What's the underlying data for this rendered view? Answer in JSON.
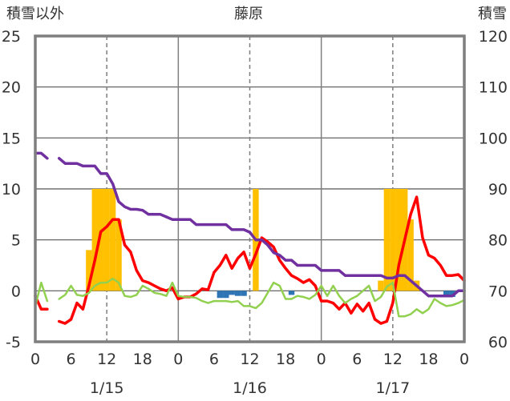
{
  "chart_data": {
    "type": "bar+line",
    "title": "藤原",
    "left_axis_label": "積雪以外",
    "right_axis_label": "積雪",
    "y_left": {
      "ylim": [
        -5,
        25
      ],
      "ticks": [
        -5,
        0,
        5,
        10,
        15,
        20,
        25
      ]
    },
    "y_right": {
      "ylim": [
        60,
        120
      ],
      "ticks": [
        60,
        70,
        80,
        90,
        100,
        110,
        120
      ]
    },
    "x_hours": {
      "xlim": [
        0,
        72
      ],
      "ticks": [
        0,
        6,
        12,
        18,
        24,
        30,
        36,
        42,
        48,
        54,
        60,
        66,
        72
      ],
      "tick_labels": [
        "0",
        "6",
        "12",
        "18",
        "0",
        "6",
        "12",
        "18",
        "0",
        "6",
        "12",
        "18",
        "0"
      ]
    },
    "date_labels": [
      {
        "hour": 12,
        "label": "1/15"
      },
      {
        "hour": 36,
        "label": "1/16"
      },
      {
        "hour": 60,
        "label": "1/17"
      }
    ],
    "vertical_solid_lines_hours": [
      24,
      48
    ],
    "vertical_dashed_lines_hours": [
      12,
      36,
      60
    ],
    "grid_y": true,
    "series": [
      {
        "kind": "bar",
        "axis": "left",
        "color": "#ffc000",
        "points": [
          [
            9,
            4
          ],
          [
            10,
            10
          ],
          [
            11,
            10
          ],
          [
            12,
            10
          ],
          [
            13,
            10
          ],
          [
            14,
            7
          ],
          [
            37,
            10
          ],
          [
            58,
            1
          ],
          [
            59,
            10
          ],
          [
            60,
            10
          ],
          [
            61,
            10
          ],
          [
            62,
            10
          ],
          [
            63,
            7
          ],
          [
            64,
            1
          ]
        ]
      },
      {
        "kind": "bar",
        "axis": "left",
        "color": "#2e75b6",
        "points": [
          [
            31,
            -0.7
          ],
          [
            32,
            -0.7
          ],
          [
            33,
            -0.4
          ],
          [
            34,
            -0.5
          ],
          [
            35,
            -0.5
          ],
          [
            43,
            -0.4
          ],
          [
            69,
            -0.4
          ],
          [
            70,
            -0.6
          ]
        ]
      },
      {
        "kind": "line",
        "axis": "left",
        "color": "#ff0000",
        "segments": [
          [
            [
              0,
              -0.5
            ],
            [
              1,
              -1.8
            ],
            [
              2,
              -1.8
            ]
          ],
          [
            [
              4,
              -3
            ],
            [
              5,
              -3.2
            ],
            [
              6,
              -2.8
            ],
            [
              7,
              -1.2
            ],
            [
              8,
              -1.8
            ],
            [
              9,
              0.5
            ],
            [
              10,
              3
            ],
            [
              11,
              5.8
            ],
            [
              12,
              6.3
            ],
            [
              13,
              7
            ],
            [
              14,
              7
            ],
            [
              15,
              4.5
            ],
            [
              16,
              3.8
            ],
            [
              17,
              2
            ],
            [
              18,
              1
            ],
            [
              19,
              0.8
            ],
            [
              20,
              0.5
            ],
            [
              21,
              0.2
            ],
            [
              22,
              0
            ],
            [
              23,
              0.3
            ],
            [
              24,
              -0.8
            ],
            [
              25,
              -0.6
            ],
            [
              26,
              -0.6
            ],
            [
              27,
              -0.3
            ],
            [
              28,
              0.2
            ],
            [
              29,
              0.1
            ],
            [
              30,
              1.8
            ],
            [
              31,
              2.5
            ],
            [
              32,
              3.5
            ],
            [
              33,
              2.2
            ],
            [
              34,
              3.2
            ],
            [
              35,
              3.8
            ],
            [
              36,
              2.2
            ],
            [
              37,
              3.6
            ],
            [
              38,
              5.2
            ],
            [
              39,
              4.8
            ],
            [
              40,
              4.3
            ],
            [
              41,
              3
            ],
            [
              42,
              2.2
            ],
            [
              43,
              1.5
            ],
            [
              44,
              1.2
            ],
            [
              45,
              0.8
            ],
            [
              46,
              1.1
            ],
            [
              47,
              0.5
            ],
            [
              48,
              -1
            ],
            [
              49,
              -1
            ],
            [
              50,
              -1.2
            ],
            [
              51,
              -1.8
            ],
            [
              52,
              -1.2
            ],
            [
              53,
              -2.2
            ],
            [
              54,
              -1.3
            ],
            [
              55,
              -2
            ],
            [
              56,
              -1.2
            ],
            [
              57,
              -2.8
            ],
            [
              58,
              -3.2
            ],
            [
              59,
              -3
            ],
            [
              60,
              -1.2
            ],
            [
              61,
              2.5
            ],
            [
              62,
              5
            ],
            [
              63,
              7.5
            ],
            [
              64,
              9.2
            ],
            [
              65,
              5.2
            ],
            [
              66,
              3.5
            ],
            [
              67,
              3.2
            ],
            [
              68,
              2.5
            ],
            [
              69,
              1.5
            ],
            [
              70,
              1.5
            ],
            [
              71,
              1.6
            ],
            [
              72,
              1
            ]
          ]
        ]
      },
      {
        "kind": "line",
        "axis": "left",
        "color": "#92d050",
        "segments": [
          [
            [
              0,
              -1.5
            ],
            [
              1,
              0.8
            ],
            [
              2,
              -1
            ]
          ],
          [
            [
              4,
              -0.8
            ],
            [
              5,
              -0.4
            ],
            [
              6,
              0.5
            ],
            [
              7,
              -0.4
            ],
            [
              8,
              -0.5
            ],
            [
              9,
              -0.2
            ],
            [
              10,
              0.5
            ],
            [
              11,
              0.8
            ],
            [
              12,
              0.8
            ],
            [
              13,
              1.2
            ],
            [
              14,
              0.8
            ],
            [
              15,
              -0.5
            ],
            [
              16,
              -0.6
            ],
            [
              17,
              -0.4
            ],
            [
              18,
              0.5
            ],
            [
              19,
              0.2
            ],
            [
              20,
              -0.2
            ],
            [
              21,
              -0.3
            ],
            [
              22,
              -0.5
            ],
            [
              23,
              0.8
            ],
            [
              24,
              -0.5
            ],
            [
              25,
              -0.6
            ],
            [
              26,
              -0.6
            ],
            [
              27,
              -0.7
            ],
            [
              28,
              -1
            ],
            [
              29,
              -1.2
            ],
            [
              30,
              -1
            ],
            [
              31,
              -1
            ],
            [
              32,
              -1
            ],
            [
              33,
              -1.1
            ],
            [
              34,
              -1
            ],
            [
              35,
              -1.5
            ],
            [
              36,
              -1.5
            ],
            [
              37,
              -1.7
            ],
            [
              38,
              -1.2
            ],
            [
              39,
              -0.2
            ],
            [
              40,
              0.8
            ],
            [
              41,
              0.5
            ],
            [
              42,
              -0.8
            ],
            [
              43,
              -0.8
            ],
            [
              44,
              -0.5
            ],
            [
              45,
              -0.6
            ],
            [
              46,
              -0.8
            ],
            [
              47,
              -0.4
            ],
            [
              48,
              0.5
            ],
            [
              49,
              -0.5
            ],
            [
              50,
              0.5
            ],
            [
              51,
              -0.5
            ],
            [
              52,
              -1.2
            ],
            [
              53,
              -0.8
            ],
            [
              54,
              -0.5
            ],
            [
              55,
              0
            ],
            [
              56,
              0.5
            ],
            [
              57,
              -1
            ],
            [
              58,
              -0.6
            ],
            [
              59,
              0.4
            ],
            [
              60,
              0.8
            ],
            [
              61,
              -2.5
            ],
            [
              62,
              -2.5
            ],
            [
              63,
              -2.3
            ],
            [
              64,
              -1.8
            ],
            [
              65,
              -2.2
            ],
            [
              66,
              -1.8
            ],
            [
              67,
              -0.8
            ],
            [
              68,
              -1.2
            ],
            [
              69,
              -1.5
            ],
            [
              70,
              -1.4
            ],
            [
              71,
              -1.2
            ],
            [
              72,
              -0.9
            ]
          ]
        ]
      },
      {
        "kind": "line",
        "axis": "right",
        "color": "#7030a0",
        "segments": [
          [
            [
              0,
              97
            ],
            [
              1,
              97
            ],
            [
              2,
              96
            ]
          ],
          [
            [
              4,
              96
            ],
            [
              5,
              95
            ],
            [
              6,
              95
            ],
            [
              7,
              95
            ],
            [
              8,
              94.5
            ],
            [
              9,
              94.5
            ],
            [
              10,
              94.5
            ],
            [
              11,
              93
            ],
            [
              12,
              93
            ],
            [
              13,
              91
            ],
            [
              14,
              87.5
            ],
            [
              15,
              86.5
            ],
            [
              16,
              86
            ],
            [
              17,
              86
            ],
            [
              18,
              85.8
            ],
            [
              19,
              85
            ],
            [
              20,
              85
            ],
            [
              21,
              85
            ],
            [
              22,
              84.5
            ],
            [
              23,
              84
            ],
            [
              24,
              84
            ],
            [
              25,
              84
            ],
            [
              26,
              84
            ],
            [
              27,
              83
            ],
            [
              28,
              83
            ],
            [
              29,
              83
            ],
            [
              30,
              83
            ],
            [
              31,
              83
            ],
            [
              32,
              83
            ],
            [
              33,
              82
            ],
            [
              34,
              82
            ],
            [
              35,
              82
            ],
            [
              36,
              81.5
            ],
            [
              37,
              80
            ],
            [
              38,
              80
            ],
            [
              39,
              79
            ],
            [
              40,
              77.5
            ],
            [
              41,
              77
            ],
            [
              42,
              76
            ],
            [
              43,
              76
            ],
            [
              44,
              75
            ],
            [
              45,
              75
            ],
            [
              46,
              75
            ],
            [
              47,
              75
            ],
            [
              48,
              74
            ],
            [
              49,
              74
            ],
            [
              50,
              74
            ],
            [
              51,
              74
            ],
            [
              52,
              73
            ],
            [
              53,
              73
            ],
            [
              54,
              73
            ],
            [
              55,
              73
            ],
            [
              56,
              73
            ],
            [
              57,
              73
            ],
            [
              58,
              73
            ],
            [
              59,
              72.5
            ],
            [
              60,
              72.5
            ],
            [
              61,
              73
            ],
            [
              62,
              73
            ],
            [
              63,
              72
            ],
            [
              64,
              71
            ],
            [
              65,
              70
            ],
            [
              66,
              69
            ],
            [
              67,
              69
            ],
            [
              68,
              69
            ],
            [
              69,
              69
            ],
            [
              70,
              69
            ],
            [
              71,
              70
            ],
            [
              72,
              70
            ]
          ]
        ]
      }
    ]
  }
}
